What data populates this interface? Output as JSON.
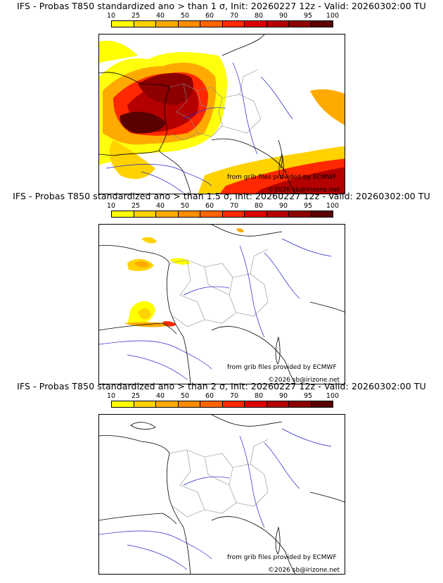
{
  "panels": [
    {
      "title": "IFS - Probas T850  standardized ano > than 1 σ, Init: 20260227 12z - Valid: 20260302:00 TU",
      "credit_source": "from grib files provided by ECMWF",
      "credit_copyright": "©2026 sb@irizone.net"
    },
    {
      "title": "IFS - Probas T850  standardized ano > than 1.5 σ, Init: 20260227 12z - Valid: 20260302:00 TU",
      "credit_source": "from grib files provided by ECMWF",
      "credit_copyright": "©2026 sb@irizone.net"
    },
    {
      "title": "IFS - Probas T850  standardized ano > than 2 σ, Init: 20260227 12z - Valid: 20260302:00 TU",
      "credit_source": "from grib files provided by ECMWF",
      "credit_copyright": "©2026 sb@irizone.net"
    }
  ],
  "legend": {
    "labels": [
      "10",
      "25",
      "40",
      "50",
      "60",
      "70",
      "80",
      "90",
      "95",
      "100"
    ],
    "colors": [
      "#ffff00",
      "#ffd200",
      "#ffaa00",
      "#ff8c00",
      "#ff6400",
      "#ff2800",
      "#dc0000",
      "#b40000",
      "#8c0000",
      "#5a0000"
    ]
  }
}
